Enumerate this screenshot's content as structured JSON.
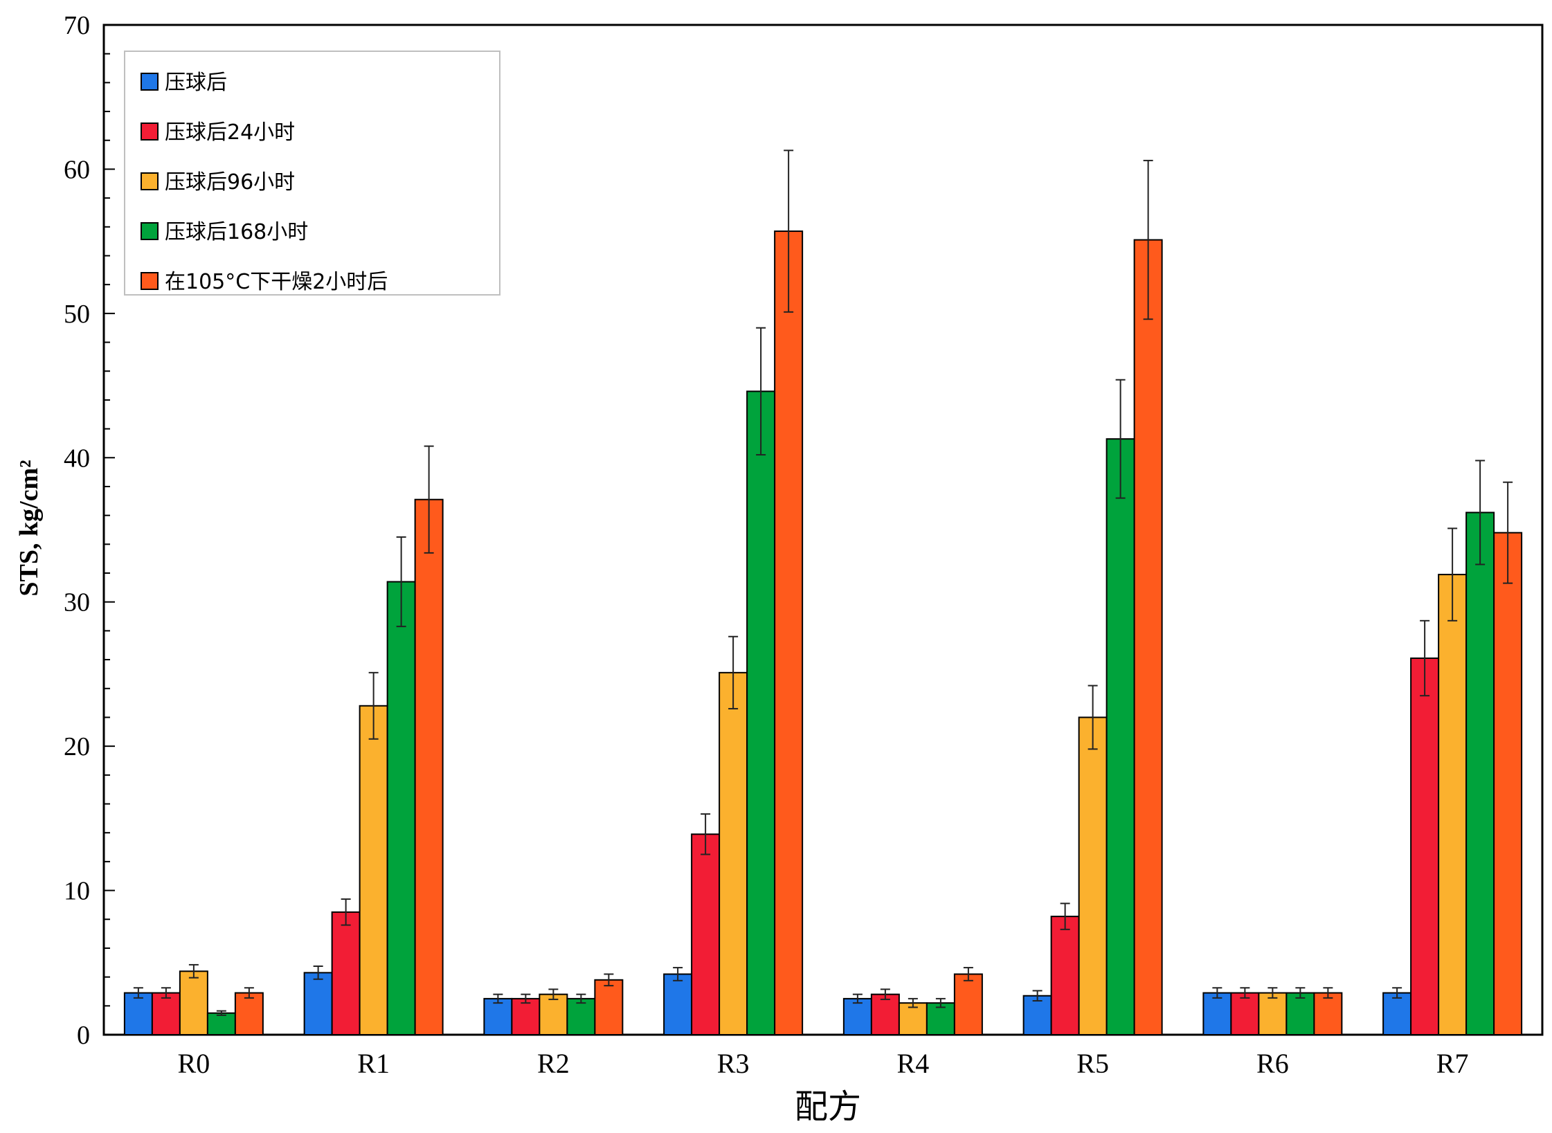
{
  "chart_data": {
    "type": "bar",
    "title": "",
    "xlabel": "配方",
    "ylabel": "STS, kg/cm²",
    "ylim": [
      0,
      70
    ],
    "yticks": [
      0,
      10,
      20,
      30,
      40,
      50,
      60,
      70
    ],
    "grid": false,
    "legend_position": "top-left",
    "categories": [
      "R0",
      "R1",
      "R2",
      "R3",
      "R4",
      "R5",
      "R6",
      "R7"
    ],
    "series": [
      {
        "name": "压球后",
        "color": "#1f77e8",
        "values": [
          2.9,
          4.3,
          2.5,
          4.2,
          2.5,
          2.7,
          2.9,
          2.9
        ],
        "errors": [
          0.35,
          0.45,
          0.3,
          0.45,
          0.3,
          0.35,
          0.35,
          0.35
        ]
      },
      {
        "name": "压球后24小时",
        "color": "#f21d35",
        "values": [
          2.9,
          8.5,
          2.5,
          13.9,
          2.8,
          8.2,
          2.9,
          26.1
        ],
        "errors": [
          0.35,
          0.9,
          0.3,
          1.4,
          0.35,
          0.9,
          0.35,
          2.6
        ]
      },
      {
        "name": "压球后96小时",
        "color": "#fbb12e",
        "values": [
          4.4,
          22.8,
          2.8,
          25.1,
          2.2,
          22.0,
          2.9,
          31.9
        ],
        "errors": [
          0.45,
          2.3,
          0.35,
          2.5,
          0.3,
          2.2,
          0.35,
          3.2
        ]
      },
      {
        "name": "压球后168小时",
        "color": "#00a33c",
        "values": [
          1.5,
          31.4,
          2.5,
          44.6,
          2.2,
          41.3,
          2.9,
          36.2
        ],
        "errors": [
          0.15,
          3.1,
          0.3,
          4.4,
          0.3,
          4.1,
          0.35,
          3.6
        ]
      },
      {
        "name": "在105°C下干燥2小时后",
        "color": "#ff5a1c",
        "values": [
          2.9,
          37.1,
          3.8,
          55.7,
          4.2,
          55.1,
          2.9,
          34.8
        ],
        "errors": [
          0.35,
          3.7,
          0.4,
          5.6,
          0.45,
          5.5,
          0.35,
          3.5
        ]
      }
    ]
  }
}
